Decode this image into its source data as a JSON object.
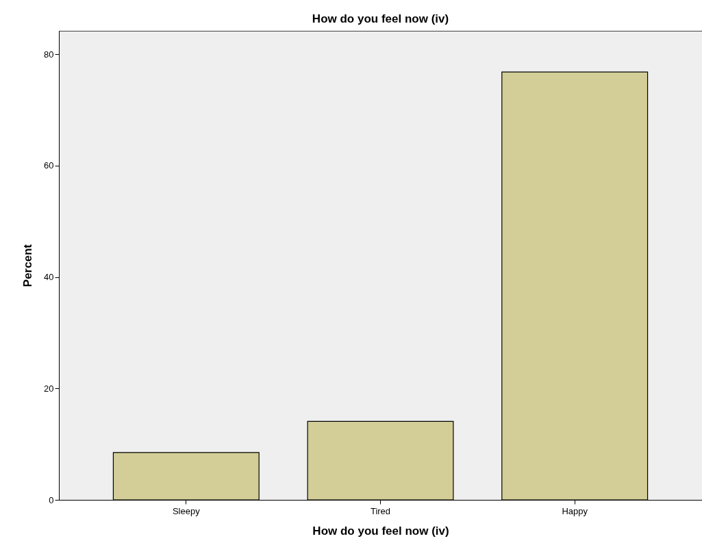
{
  "chart_data": {
    "type": "bar",
    "title": "How do you feel now (iv)",
    "xlabel": "How do you feel now (iv)",
    "ylabel": "Percent",
    "categories": [
      "Sleepy",
      "Tired",
      "Happy"
    ],
    "values": [
      8.5,
      14.1,
      76.8
    ],
    "color": "#d3ce97",
    "ylim": [
      0,
      84.2
    ],
    "yticks": [
      0,
      20,
      40,
      60,
      80
    ],
    "grid": false
  }
}
